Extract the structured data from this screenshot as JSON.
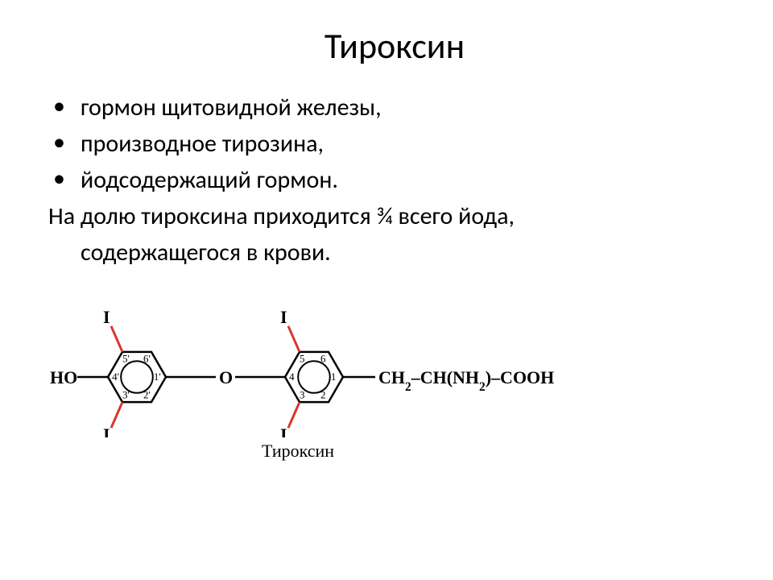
{
  "title": "Тироксин",
  "bullets": [
    "гормон щитовидной железы,",
    "производное тирозина,",
    "йодсодержащий гормон."
  ],
  "paragraph_line1": "На долю тироксина приходится ¾ всего йода,",
  "paragraph_line2": "содержащегося в крови.",
  "caption": "Тироксин",
  "structure": {
    "left_label": "HO",
    "ring1_positions": [
      "1'",
      "2'",
      "3'",
      "4'",
      "5'",
      "6'"
    ],
    "ring2_positions": [
      "1",
      "2",
      "3",
      "4",
      "5",
      "6"
    ],
    "iodine_label": "I",
    "ether_label": "O",
    "chain": "CH₂–CH(NH₂)–COOH",
    "chain_raw": "CH",
    "chain_sub2": "2",
    "chain_dash": "–",
    "chain_ch": "CH(NH",
    "chain_nh2sub": "2",
    "chain_rest": ")–COOH",
    "colors": {
      "bond": "#000000",
      "iodine_bond": "#d9362a",
      "text": "#000000"
    },
    "stroke_width": 2.5,
    "ring_radius": 36,
    "font_family": "Times New Roman, serif",
    "label_fontsize": 22,
    "pos_fontsize": 13
  }
}
